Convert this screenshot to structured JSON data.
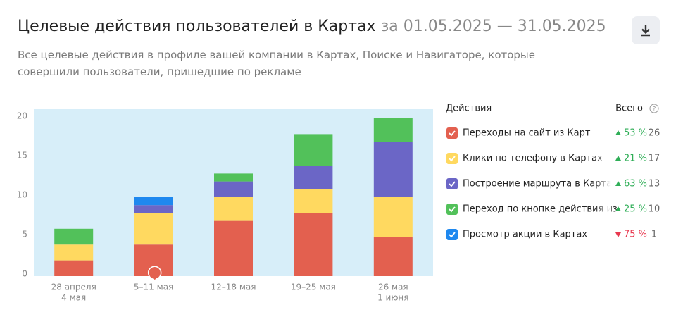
{
  "header": {
    "title": "Целевые действия пользователей в Картах",
    "period": "за 01.05.2025 — 31.05.2025",
    "subtitle": "Все целевые действия в профиле вашей компании в Картах, Поиске и Навигаторе, которые совершили пользователи, пришедшие по рекламе"
  },
  "chart_data": {
    "type": "stacked-bar",
    "categories": [
      [
        "28 апреля",
        "4 мая"
      ],
      [
        "5–11 мая"
      ],
      [
        "12–18 мая"
      ],
      [
        "19–25 мая"
      ],
      [
        "26 мая",
        "1 июня"
      ]
    ],
    "ylim": [
      0,
      20
    ],
    "yticks": [
      0,
      5,
      10,
      15,
      20
    ],
    "background": "#d7eef9",
    "legend_header": {
      "name": "Действия",
      "total": "Всего"
    },
    "series": [
      {
        "name": "Переходы на сайт из Карт",
        "color": "#e3604f",
        "values": [
          2,
          4,
          7,
          8,
          5
        ],
        "total": 26,
        "change": "53 %",
        "trend": "up"
      },
      {
        "name": "Клики по телефону в Картах",
        "color": "#ffd960",
        "values": [
          2,
          4,
          3,
          3,
          5
        ],
        "total": 17,
        "change": "21 %",
        "trend": "up"
      },
      {
        "name": "Построение маршрута в Карта",
        "color": "#6b66c6",
        "values": [
          0,
          1,
          2,
          3,
          7
        ],
        "total": 13,
        "change": "63 %",
        "trend": "up"
      },
      {
        "name": "Переход по кнопке действия из",
        "color": "#52c15a",
        "values": [
          2,
          0,
          1,
          4,
          3
        ],
        "total": 10,
        "change": "25 %",
        "trend": "up"
      },
      {
        "name": "Просмотр акции в Картах",
        "color": "#1e88ef",
        "values": [
          0,
          1,
          0,
          0,
          0
        ],
        "total": 1,
        "change": "75 %",
        "trend": "down"
      }
    ]
  }
}
